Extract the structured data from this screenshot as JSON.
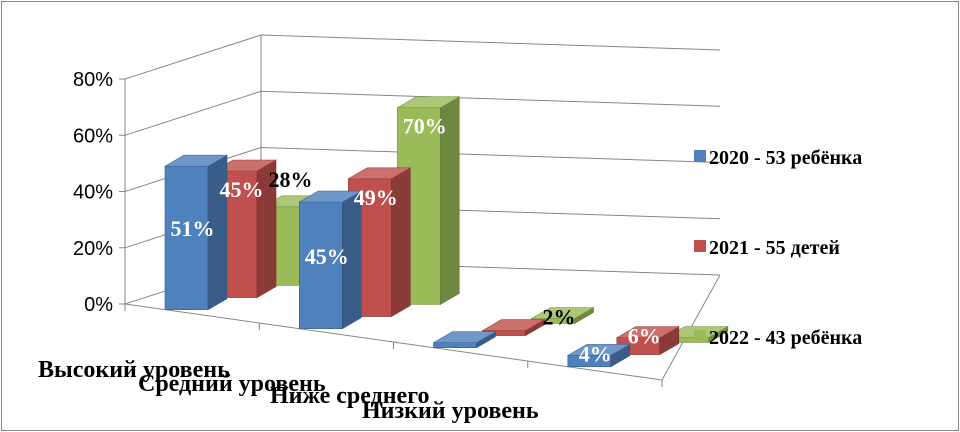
{
  "chart_data": {
    "type": "bar",
    "variant": "3d-clustered-column",
    "title": "",
    "xlabel": "",
    "ylabel": "",
    "ylim": [
      0,
      0.8
    ],
    "y_ticks": [
      "0%",
      "20%",
      "40%",
      "60%",
      "80%"
    ],
    "grid": true,
    "legend_position": "right",
    "categories": [
      "Высокий  уровень",
      "Средний уровень",
      "Ниже среднего",
      "Низкий уровень"
    ],
    "series": [
      {
        "name": "2020 - 53 ребёнка",
        "color": "#4F81BD",
        "values": [
          0.51,
          0.45,
          0.0,
          0.04
        ],
        "labels": [
          "51%",
          "45%",
          "",
          "4%"
        ]
      },
      {
        "name": "2021 - 55 детей",
        "color": "#C0504D",
        "values": [
          0.45,
          0.49,
          0.0,
          0.06
        ],
        "labels": [
          "45%",
          "49%",
          "",
          "6%"
        ]
      },
      {
        "name": "2022 - 43 ребёнка",
        "color": "#9BBB59",
        "values": [
          0.28,
          0.7,
          0.02,
          0.0
        ],
        "labels": [
          "28%",
          "70%",
          "2%",
          ""
        ]
      }
    ]
  }
}
